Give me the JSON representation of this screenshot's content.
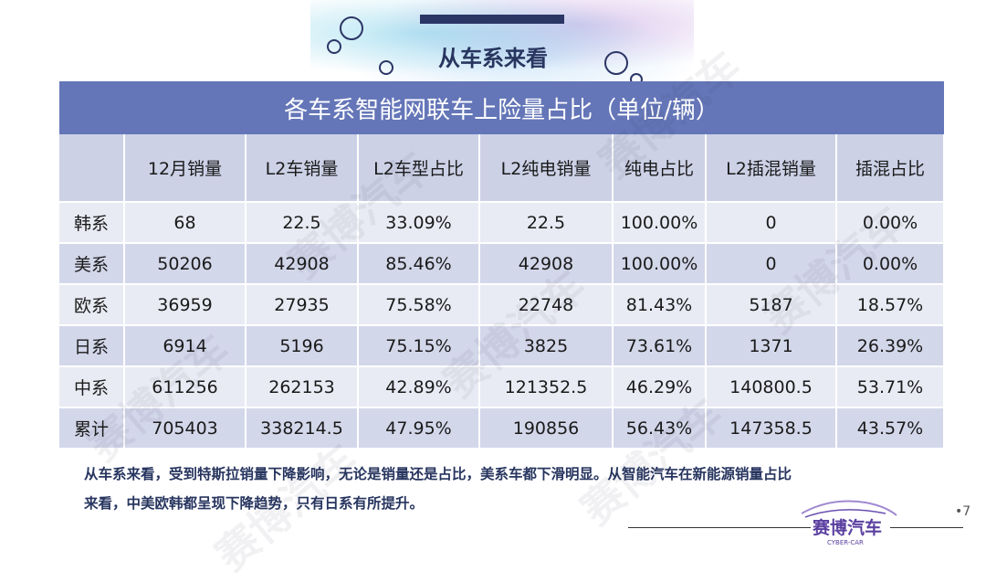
{
  "page_title": "从车系来看",
  "table_title": "各车系智能网联车上险量占比（单位/辆）",
  "columns": [
    "",
    "12月销量",
    "L2车销量",
    "L2车型占比",
    "L2纯电销量",
    "纯电占比",
    "L2插混销量",
    "插混占比"
  ],
  "rows": [
    [
      "韩系",
      "68",
      "22.5",
      "33.09%",
      "22.5",
      "100.00%",
      "0",
      "0.00%"
    ],
    [
      "美系",
      "50206",
      "42908",
      "85.46%",
      "42908",
      "100.00%",
      "0",
      "0.00%"
    ],
    [
      "欧系",
      "36959",
      "27935",
      "75.58%",
      "22748",
      "81.43%",
      "5187",
      "18.57%"
    ],
    [
      "日系",
      "6914",
      "5196",
      "75.15%",
      "3825",
      "73.61%",
      "1371",
      "26.39%"
    ],
    [
      "中系",
      "611256",
      "262153",
      "42.89%",
      "121352.5",
      "46.29%",
      "140800.5",
      "53.71%"
    ],
    [
      "累计",
      "705403",
      "338214.5",
      "47.95%",
      "190856",
      "56.43%",
      "147358.5",
      "43.57%"
    ]
  ],
  "summary_line1": "从车系来看，受到特斯拉销量下降影响，无论是销量还是占比，美系车都下滑明显。从智能汽车在新能源销量占比",
  "summary_line2": "来看，中美欧韩都呈现下降趋势，只有日系有所提升。",
  "logo": {
    "name": "赛博汽车",
    "sub": "CYBER-CAR"
  },
  "watermark_text": "赛博汽车",
  "page_number": "•7",
  "colors": {
    "banner": "#6476b8",
    "title": "#27355f",
    "row_dark": "#d3d7ea",
    "row_light": "#e9ebf4",
    "logo": "#5a3fa0"
  }
}
